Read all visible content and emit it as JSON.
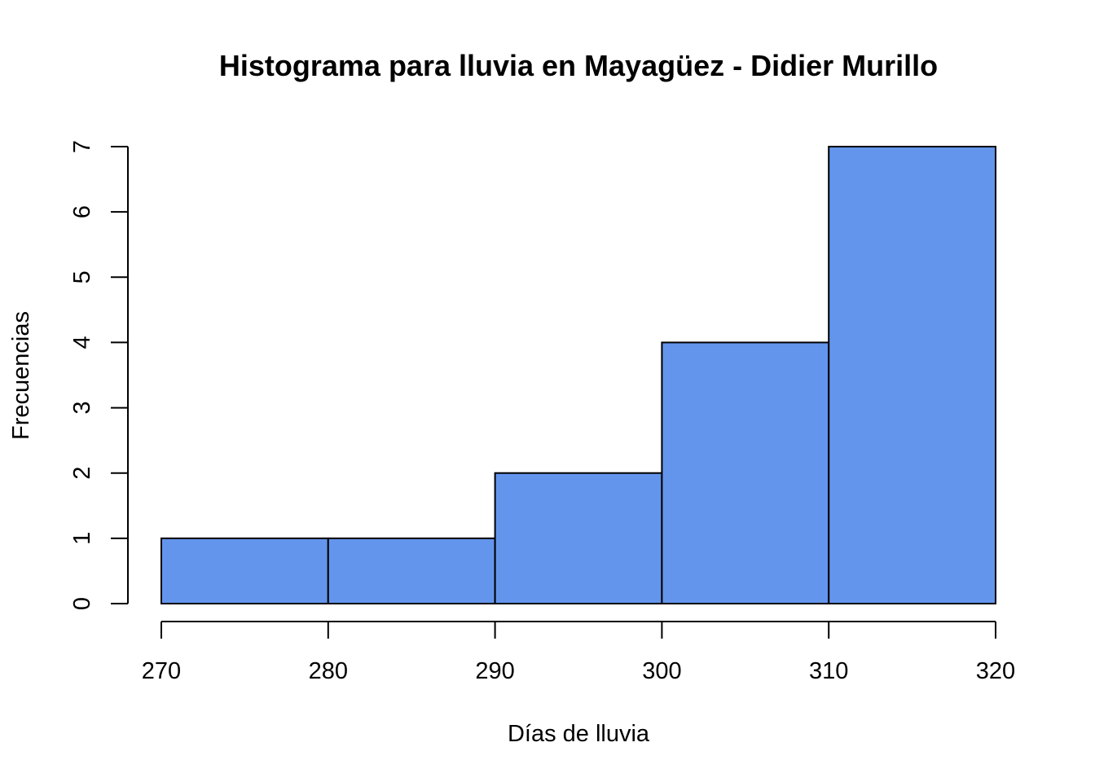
{
  "chart_data": {
    "type": "histogram",
    "title": "Histograma para lluvia en Mayagüez - Didier Murillo",
    "xlabel": "Días de lluvia",
    "ylabel": "Frecuencias",
    "bins": [
      {
        "from": 270,
        "to": 280,
        "count": 1
      },
      {
        "from": 280,
        "to": 290,
        "count": 1
      },
      {
        "from": 290,
        "to": 300,
        "count": 2
      },
      {
        "from": 300,
        "to": 310,
        "count": 4
      },
      {
        "from": 310,
        "to": 320,
        "count": 7
      }
    ],
    "xlim": [
      270,
      320
    ],
    "ylim": [
      0,
      7
    ],
    "xticks": [
      270,
      280,
      290,
      300,
      310,
      320
    ],
    "yticks": [
      0,
      1,
      2,
      3,
      4,
      5,
      6,
      7
    ],
    "bar_color": "#6495ED",
    "edge_color": "#000000",
    "grid": false
  }
}
